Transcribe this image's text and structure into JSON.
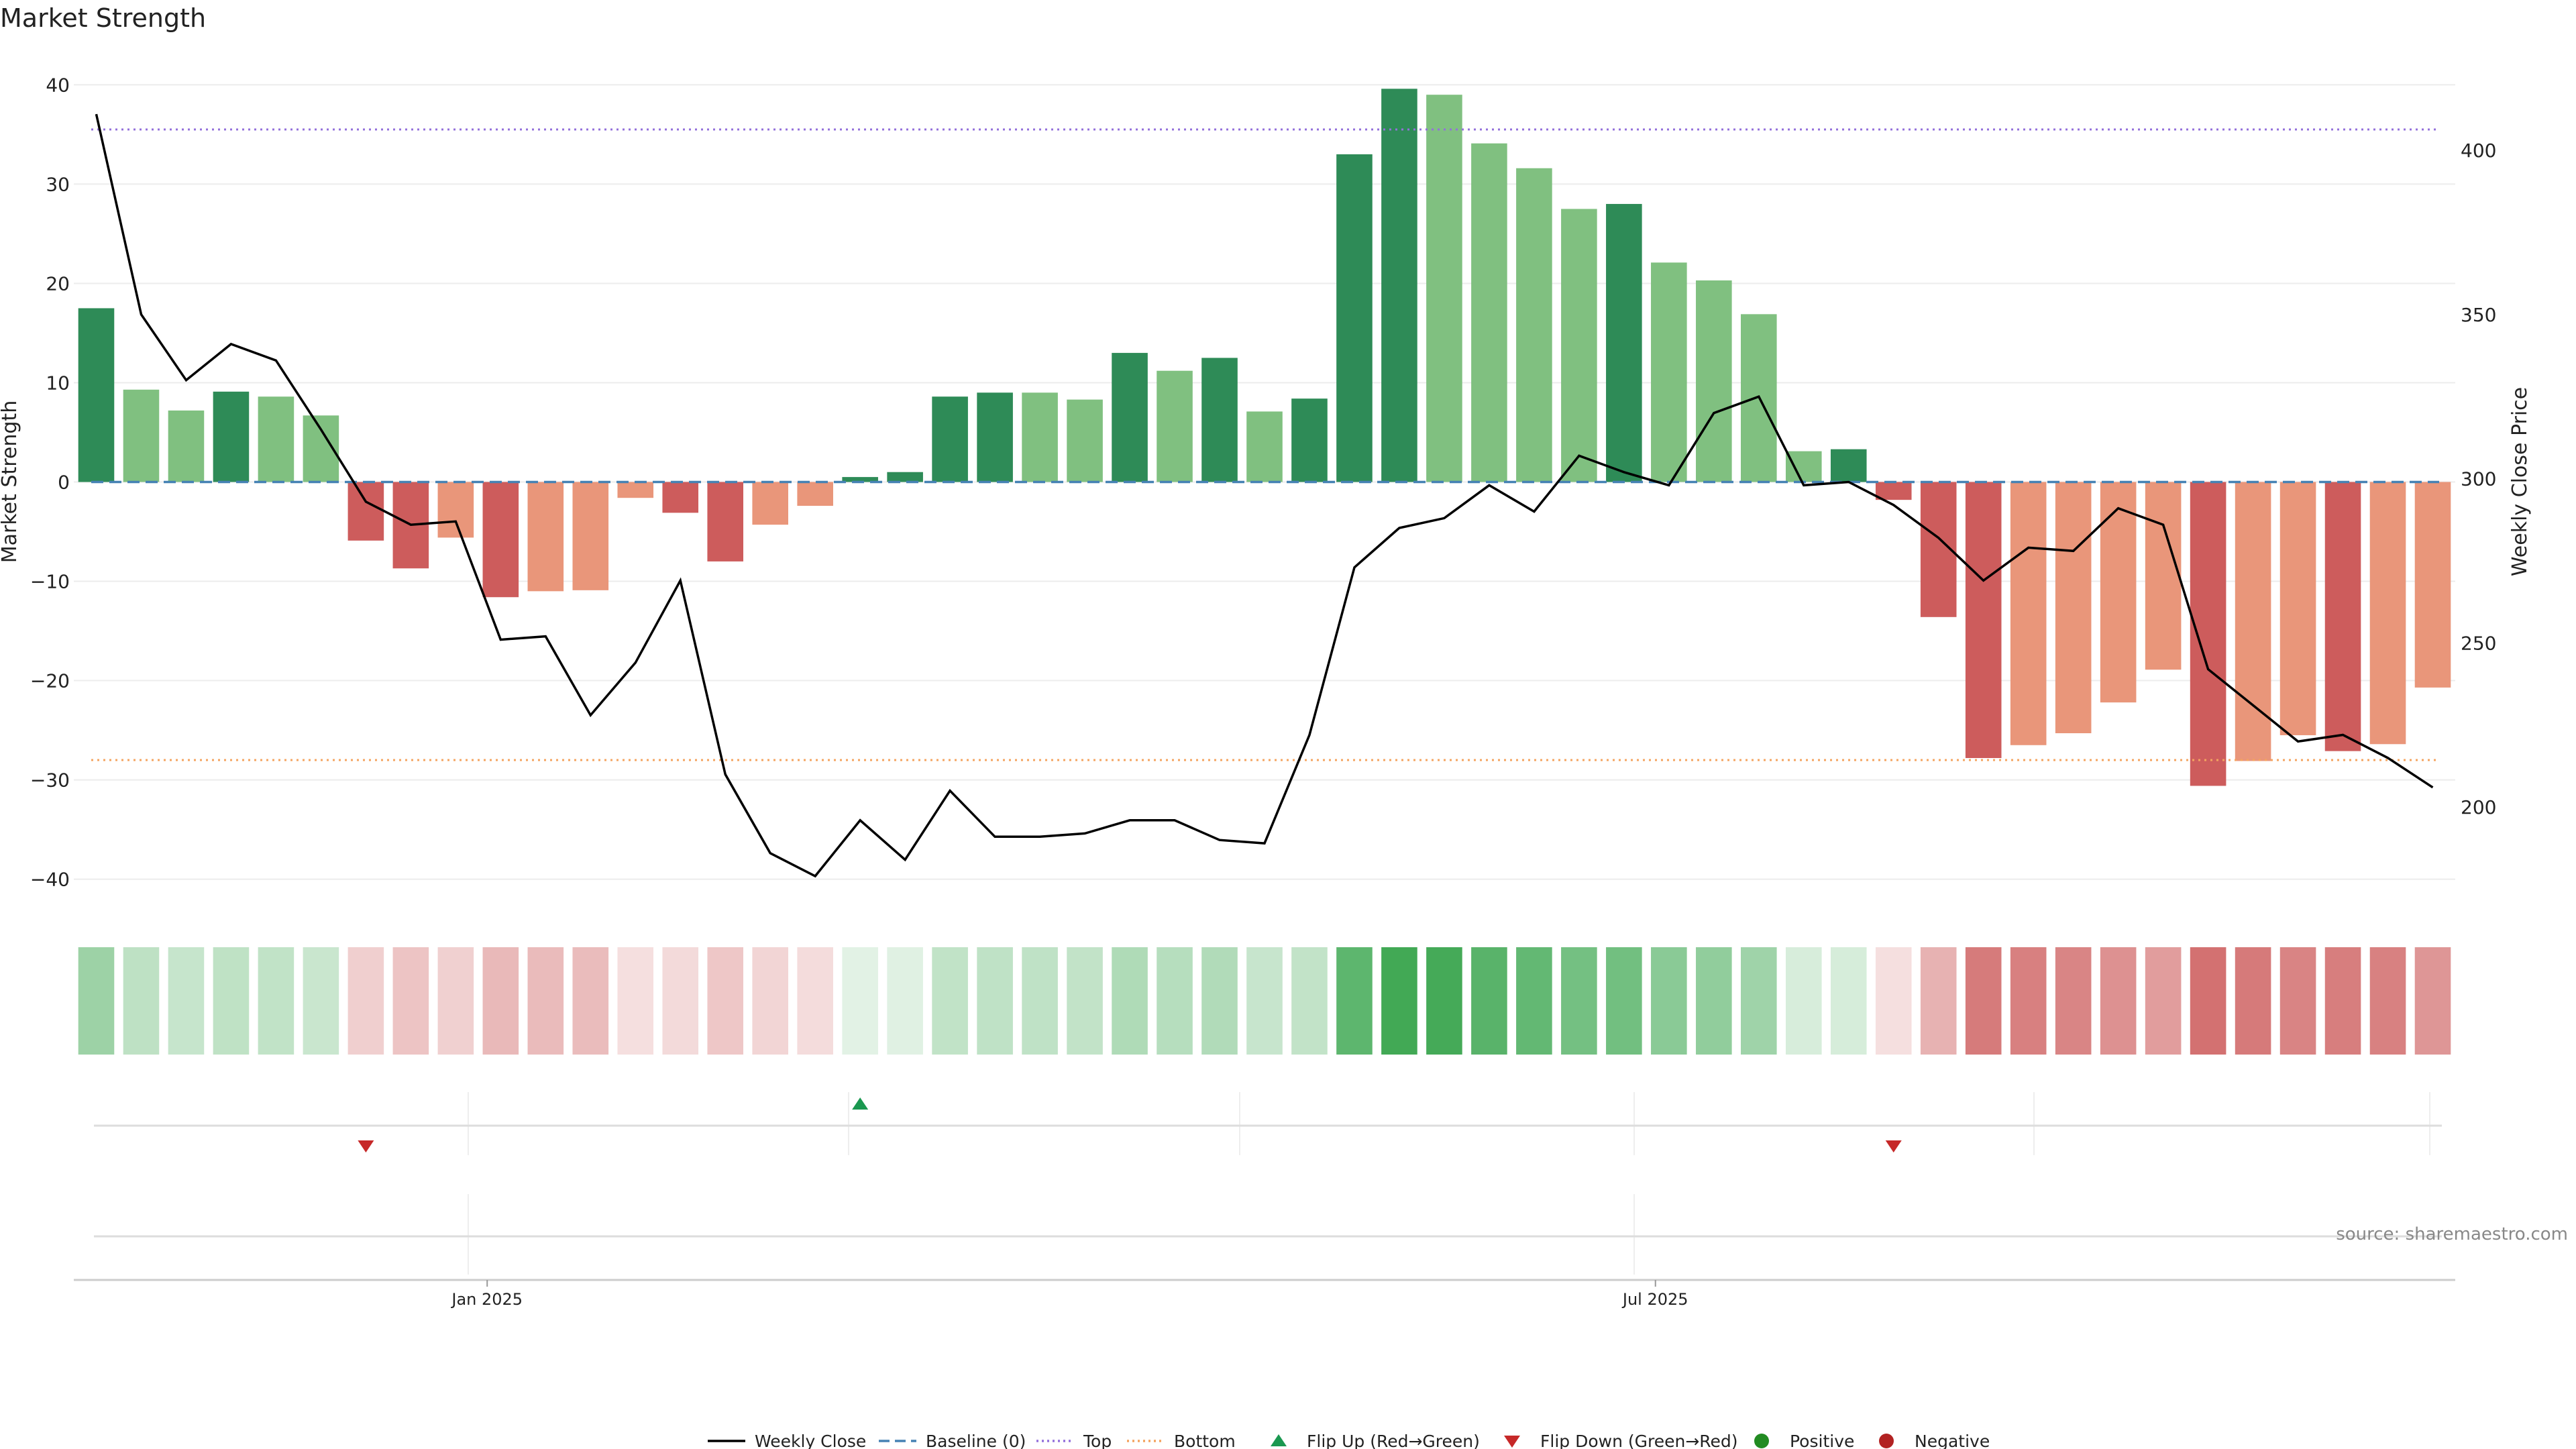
{
  "chart_data": {
    "type": "bar",
    "title": "Market Strength",
    "ylabel": "Market Strength",
    "y2label": "Weekly Close Price",
    "ylim": [
      -43,
      43
    ],
    "y2lim": [
      169,
      429
    ],
    "yticks": [
      40,
      30,
      20,
      10,
      0,
      -10,
      -20,
      -30,
      -40
    ],
    "y2ticks": [
      400,
      350,
      300,
      250,
      200
    ],
    "grid": true,
    "x_ticks": [
      {
        "label": "Jan 2025",
        "index": 8.7
      },
      {
        "label": "Jul 2025",
        "index": 34.7
      }
    ],
    "top_line": 35.5,
    "bottom_line": -28,
    "baseline": 0,
    "strength": [
      17.5,
      9.3,
      7.2,
      9.1,
      8.6,
      6.7,
      -5.9,
      -8.7,
      -5.6,
      -11.6,
      -11.0,
      -10.9,
      -1.6,
      -3.1,
      -8.0,
      -4.3,
      -2.4,
      0.5,
      1.0,
      8.6,
      9.0,
      9.0,
      8.3,
      13.0,
      11.2,
      12.5,
      7.1,
      8.4,
      33.0,
      39.6,
      39.0,
      34.1,
      31.6,
      27.5,
      28.0,
      22.1,
      20.3,
      16.9,
      3.1,
      3.3,
      -1.8,
      -13.6,
      -27.8,
      -26.5,
      -25.3,
      -22.2,
      -18.9,
      -30.6,
      -28.1,
      -25.5,
      -27.1,
      -26.4,
      -20.7
    ],
    "strong_flags": [
      1,
      0,
      0,
      1,
      0,
      0,
      1,
      1,
      0,
      1,
      0,
      0,
      0,
      1,
      1,
      0,
      0,
      1,
      1,
      1,
      1,
      0,
      0,
      1,
      0,
      1,
      0,
      1,
      1,
      1,
      0,
      0,
      0,
      0,
      1,
      0,
      0,
      0,
      0,
      1,
      1,
      1,
      1,
      0,
      0,
      0,
      0,
      1,
      0,
      0,
      1,
      0,
      0
    ],
    "weekly_close": [
      411,
      350,
      330,
      341,
      336,
      315,
      293,
      286,
      287,
      251,
      252,
      228,
      244,
      269,
      210,
      186,
      179,
      196,
      184,
      205,
      191,
      191,
      192,
      196,
      196,
      190,
      189,
      222,
      273,
      285,
      288,
      298,
      290,
      307,
      302,
      298,
      320,
      325,
      298,
      299,
      292,
      282,
      269,
      279,
      278,
      291,
      286,
      242,
      231,
      220,
      222,
      215,
      206
    ],
    "flip_up": [
      17
    ],
    "flip_down": [
      6,
      40
    ],
    "colors": {
      "strong_green": "#2e8b57",
      "light_green": "#80c080",
      "strong_red": "#cd5c5c",
      "light_red": "#e9967a",
      "price_line": "#000000",
      "baseline": "#4682b4",
      "top": "#9370db",
      "bottom": "#f4a460",
      "flip_up": "#1a9850",
      "flip_down": "#c62828",
      "positive": "#228b22",
      "negative": "#b22222"
    }
  },
  "source": "source: sharemaestro.com",
  "legend": [
    {
      "label": "Weekly Close",
      "kind": "line-solid",
      "color": "#000000"
    },
    {
      "label": "Baseline (0)",
      "kind": "line-dashed",
      "color": "#4682b4"
    },
    {
      "label": "Top",
      "kind": "line-dotted",
      "color": "#9370db"
    },
    {
      "label": "Bottom",
      "kind": "line-dotted",
      "color": "#f4a460"
    },
    {
      "label": "Flip Up (Red→Green)",
      "kind": "triangle-up",
      "color": "#1a9850"
    },
    {
      "label": "Flip Down (Green→Red)",
      "kind": "triangle-down",
      "color": "#c62828"
    },
    {
      "label": "Positive",
      "kind": "circle",
      "color": "#228b22"
    },
    {
      "label": "Negative",
      "kind": "circle",
      "color": "#b22222"
    }
  ]
}
